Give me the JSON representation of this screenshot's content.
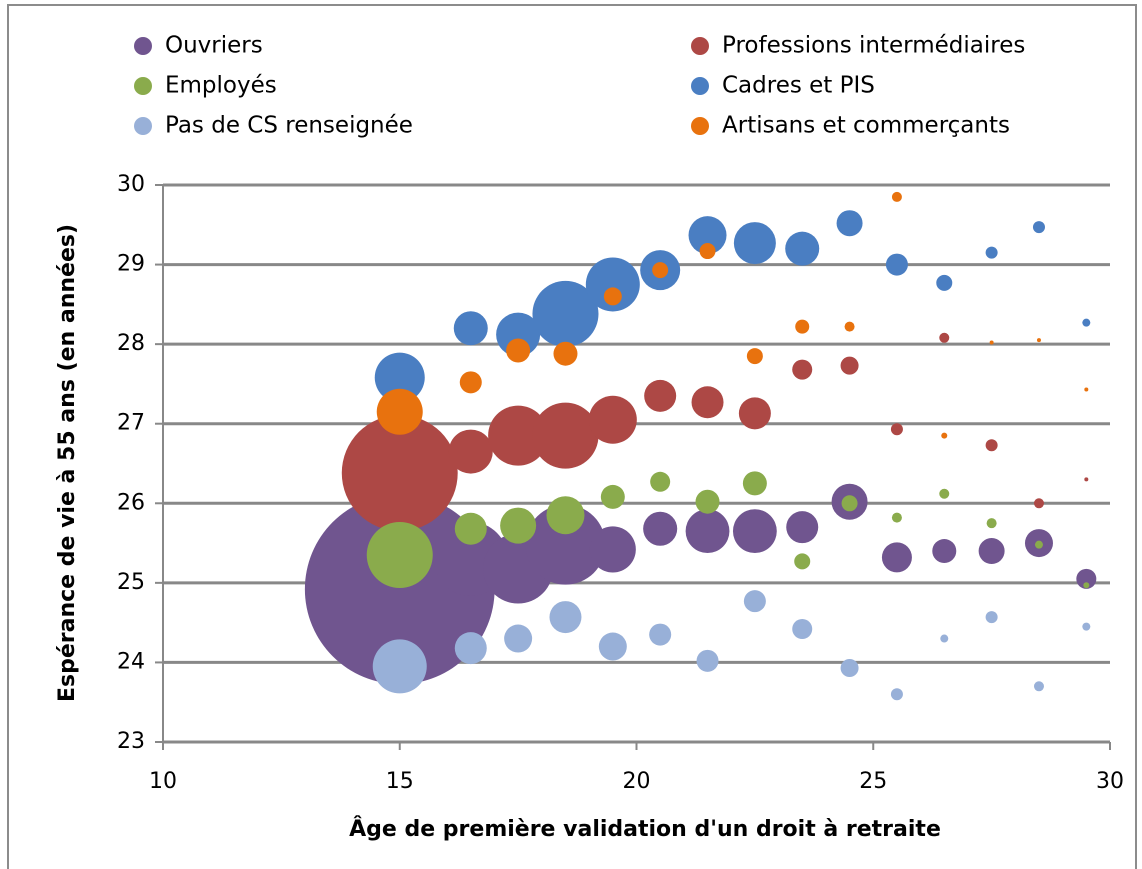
{
  "chart_data": {
    "type": "bubble",
    "xlabel": "Âge de première validation d'un droit à retraite",
    "ylabel": "Espérance de vie à 55 ans (en années)",
    "x": [
      15,
      16.5,
      17.5,
      18.5,
      19.5,
      20.5,
      21.5,
      22.5,
      23.5,
      24.5,
      25.5,
      26.5,
      27.5,
      28.5,
      29.5
    ],
    "xlim": [
      10,
      30
    ],
    "xticks": [
      10,
      15,
      20,
      25,
      30
    ],
    "ylim": [
      23,
      30
    ],
    "yticks": [
      23,
      24,
      25,
      26,
      27,
      28,
      29,
      30
    ],
    "grid": true,
    "legend": "top",
    "series": [
      {
        "name": "Ouvriers",
        "color": "#70558f",
        "values": [
          24.92,
          25.3,
          25.18,
          25.48,
          25.42,
          25.68,
          25.65,
          25.65,
          25.7,
          26.02,
          25.32,
          25.4,
          25.4,
          25.5,
          25.05
        ],
        "sizes": [
          9000,
          1370,
          1225,
          1600,
          530,
          290,
          480,
          480,
          256,
          324,
          225,
          144,
          169,
          196,
          100
        ]
      },
      {
        "name": "Professions intermédiaires",
        "color": "#ad4845",
        "values": [
          26.38,
          26.65,
          26.85,
          26.85,
          27.05,
          27.35,
          27.27,
          27.13,
          27.68,
          27.73,
          26.93,
          28.08,
          26.73,
          26.0,
          26.3
        ],
        "sizes": [
          3360,
          484,
          900,
          1090,
          576,
          256,
          256,
          256,
          100,
          81,
          36,
          25,
          36,
          25,
          4
        ]
      },
      {
        "name": "Employés",
        "color": "#8aab4c",
        "values": [
          25.35,
          25.68,
          25.72,
          25.85,
          26.08,
          26.27,
          26.02,
          26.25,
          25.27,
          26.0,
          25.82,
          26.12,
          25.75,
          25.48,
          24.97
        ],
        "sizes": [
          1090,
          256,
          324,
          361,
          144,
          100,
          144,
          144,
          64,
          64,
          25,
          25,
          25,
          16,
          9
        ]
      },
      {
        "name": "Cadres et PIS",
        "color": "#4a7ec2",
        "values": [
          27.58,
          28.2,
          28.12,
          28.38,
          28.75,
          28.93,
          29.37,
          29.27,
          29.2,
          29.52,
          29.0,
          28.77,
          29.15,
          29.47,
          28.27
        ],
        "sizes": [
          625,
          289,
          484,
          1090,
          729,
          400,
          361,
          441,
          289,
          169,
          121,
          64,
          36,
          36,
          16
        ]
      },
      {
        "name": "Pas de CS renseignée",
        "color": "#98b0d8",
        "values": [
          23.95,
          24.18,
          24.3,
          24.57,
          24.2,
          24.35,
          24.02,
          24.77,
          24.42,
          23.93,
          23.6,
          24.3,
          24.57,
          23.7,
          24.45
        ],
        "sizes": [
          729,
          256,
          196,
          256,
          196,
          121,
          121,
          121,
          100,
          81,
          36,
          16,
          36,
          25,
          16
        ]
      },
      {
        "name": "Artisans et commerçants",
        "color": "#e8720e",
        "values": [
          27.15,
          27.52,
          27.92,
          27.88,
          28.6,
          28.93,
          29.17,
          27.85,
          28.22,
          28.22,
          29.85,
          26.85,
          28.02,
          28.05,
          27.43
        ],
        "sizes": [
          529,
          121,
          144,
          144,
          81,
          64,
          64,
          64,
          49,
          25,
          25,
          9,
          4,
          4,
          4
        ]
      }
    ]
  }
}
